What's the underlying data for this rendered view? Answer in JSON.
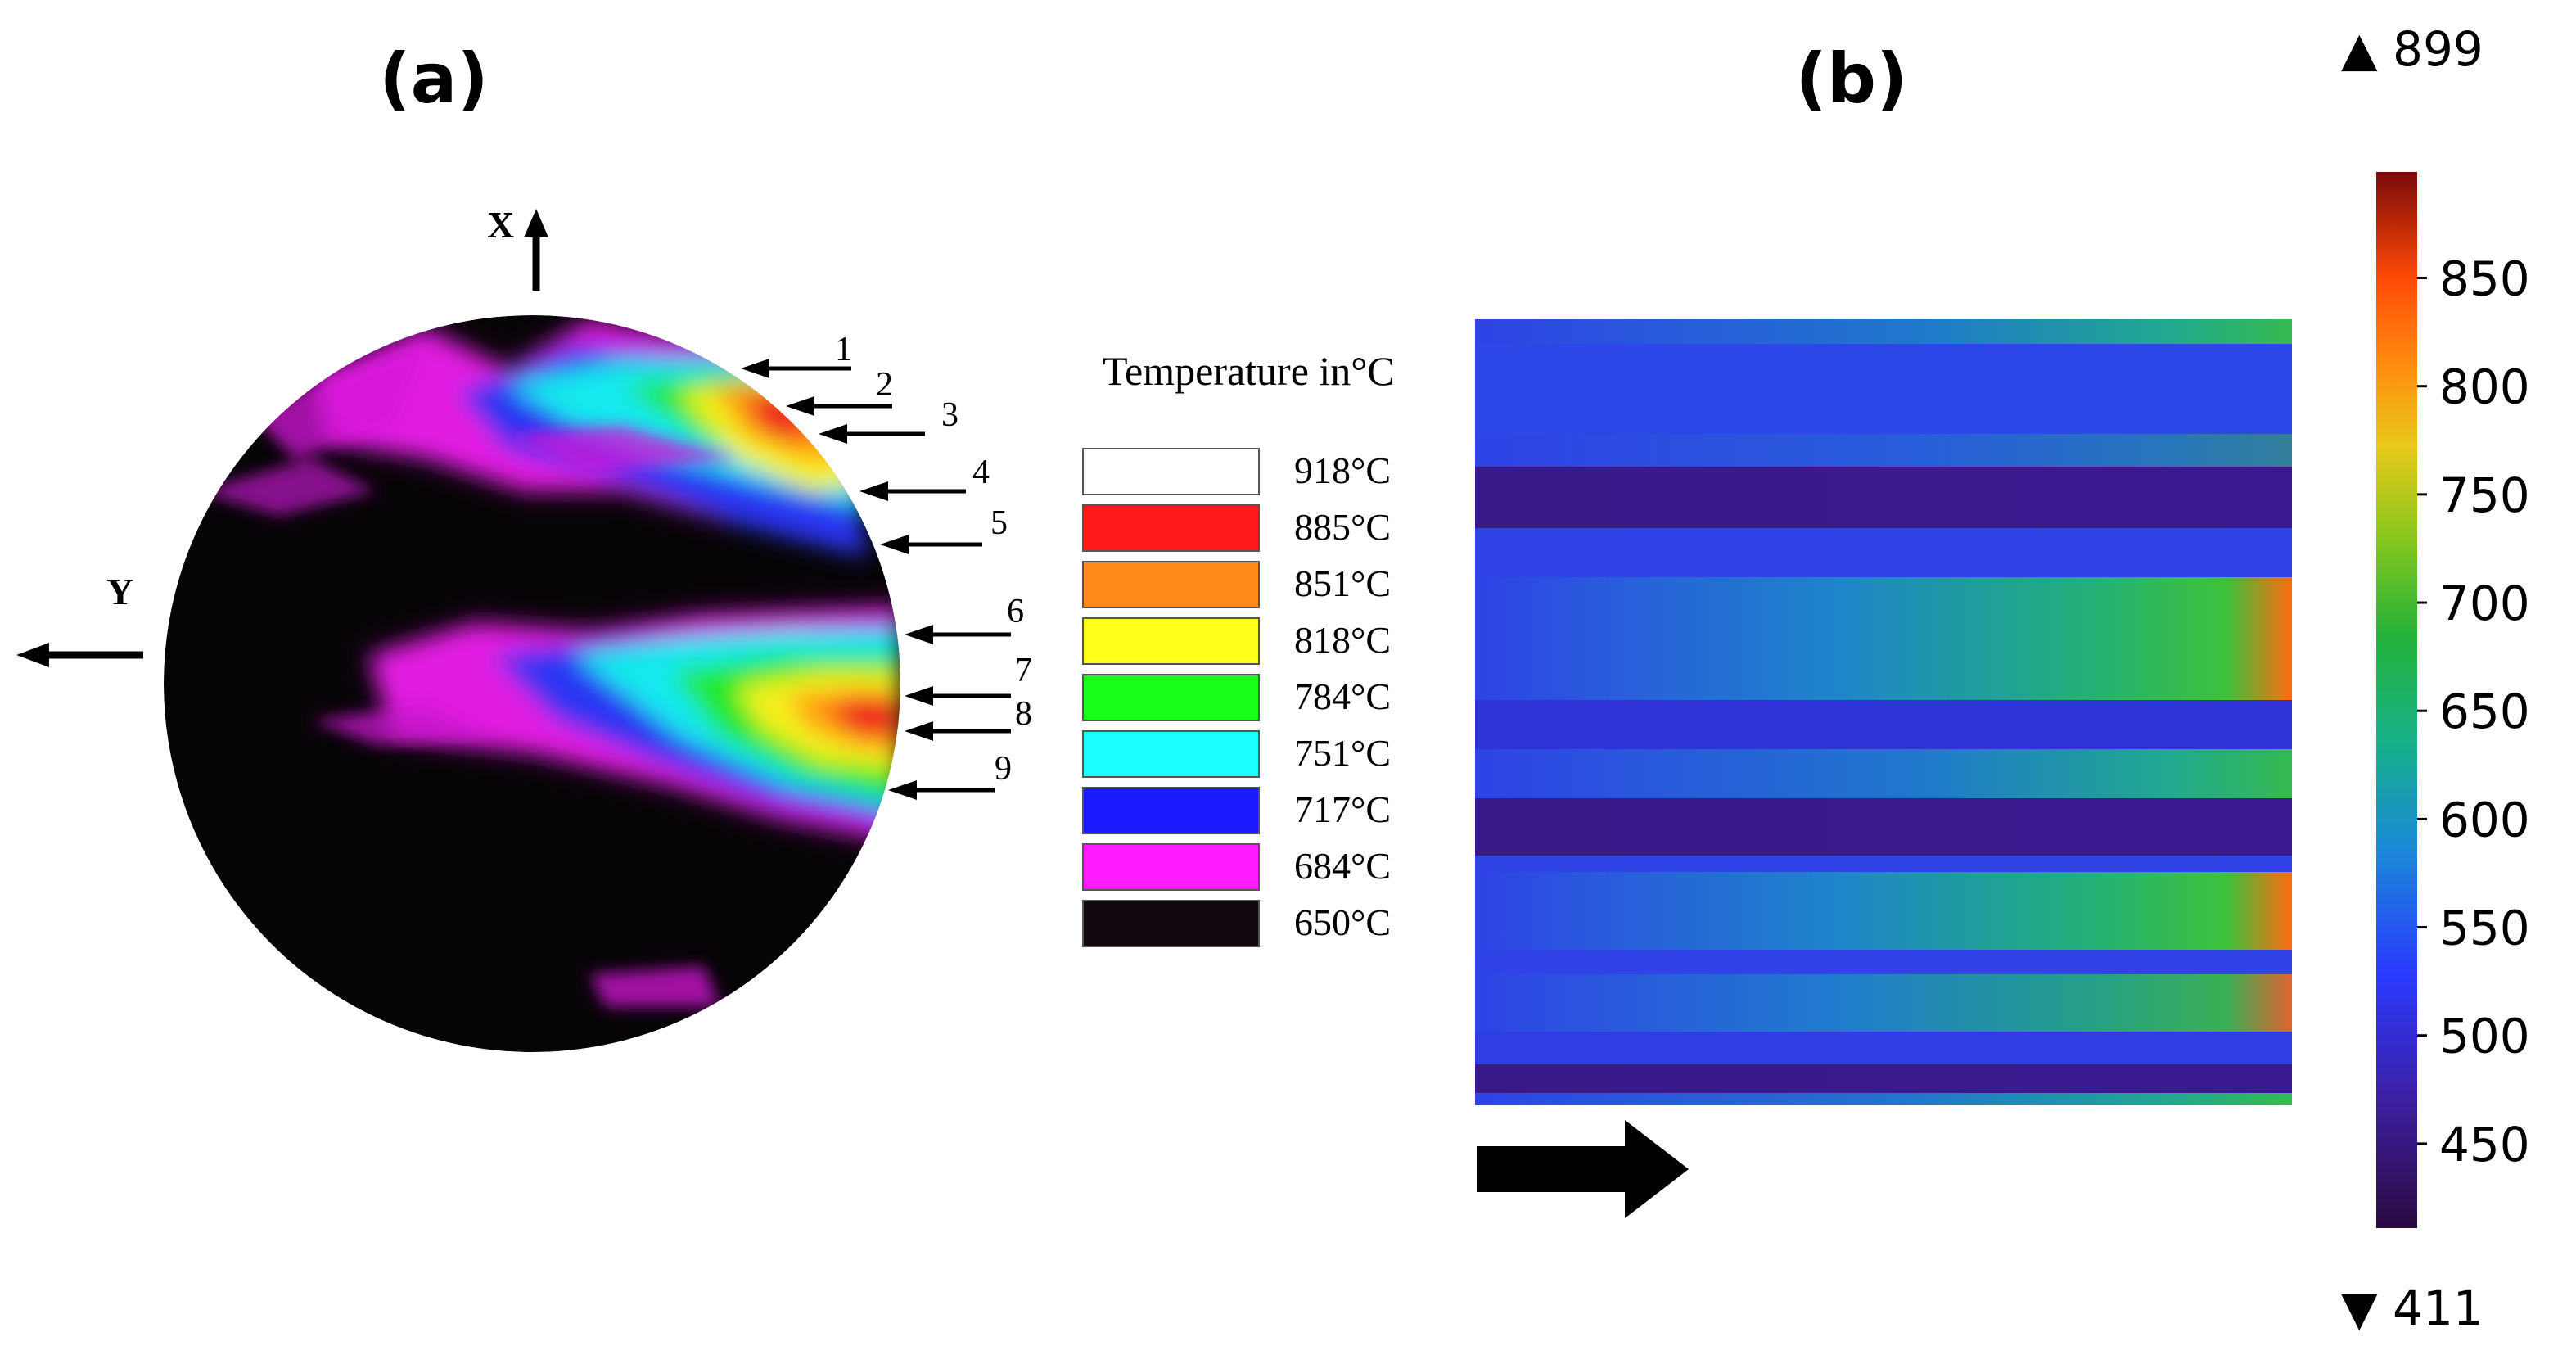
{
  "figure": {
    "panel_a_label": "(a)",
    "panel_b_label": "(b)"
  },
  "panel_a": {
    "axis_x_label": "X",
    "axis_y_label": "Y",
    "legend_title": "Temperature in°C",
    "legend": [
      {
        "label": "918°C",
        "color": "#ffffff"
      },
      {
        "label": "885°C",
        "color": "#ff1a1a"
      },
      {
        "label": "851°C",
        "color": "#ff8a1a"
      },
      {
        "label": "818°C",
        "color": "#ffff1a"
      },
      {
        "label": "784°C",
        "color": "#1aff1a"
      },
      {
        "label": "751°C",
        "color": "#1affff"
      },
      {
        "label": "717°C",
        "color": "#1a1aff"
      },
      {
        "label": "684°C",
        "color": "#ff1aff"
      },
      {
        "label": "650°C",
        "color": "#120810"
      }
    ],
    "arrow_numbers": [
      "1",
      "2",
      "3",
      "4",
      "5",
      "6",
      "7",
      "8",
      "9"
    ]
  },
  "chart_data": {
    "type": "heatmap",
    "colorbar": {
      "min": 411,
      "max": 899,
      "min_label": "▼ 411",
      "max_label": "▲ 899",
      "ticks": [
        "850",
        "800",
        "750",
        "700",
        "650",
        "600",
        "550",
        "500",
        "450"
      ],
      "tick_values": [
        850,
        800,
        750,
        700,
        650,
        600,
        550,
        500,
        450
      ]
    }
  }
}
